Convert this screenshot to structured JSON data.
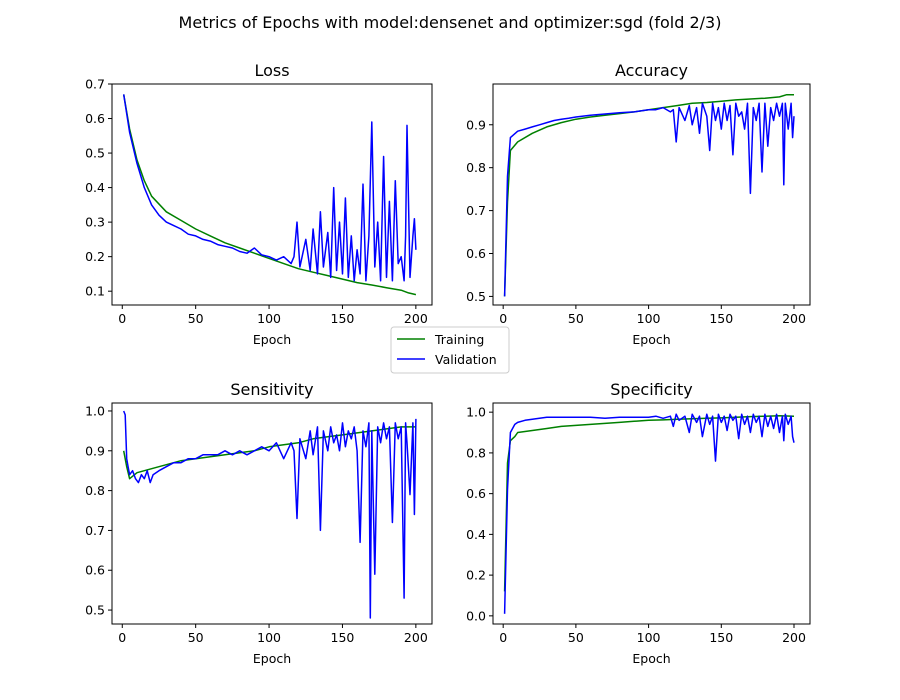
{
  "figure": {
    "title": "Metrics of Epochs with model:densenet and optimizer:sgd (fold 2/3)",
    "background": "#ffffff"
  },
  "legend": {
    "placement": "center",
    "entries": [
      {
        "label": "Training",
        "color": "#008000"
      },
      {
        "label": "Validation",
        "color": "#0000ff"
      }
    ]
  },
  "chart_data": [
    {
      "type": "line",
      "title": "Loss",
      "xlabel": "Epoch",
      "ylabel": "",
      "xlim": [
        -7,
        211
      ],
      "ylim": [
        0.06,
        0.7
      ],
      "xticks": [
        0,
        50,
        100,
        150,
        200
      ],
      "yticks": [
        0.1,
        0.2,
        0.3,
        0.4,
        0.5,
        0.6,
        0.7
      ],
      "grid": false,
      "series": [
        {
          "name": "Training",
          "color": "#008000",
          "x": [
            1,
            5,
            10,
            15,
            20,
            30,
            40,
            50,
            60,
            70,
            80,
            90,
            100,
            110,
            120,
            130,
            140,
            150,
            160,
            170,
            180,
            190,
            195,
            200
          ],
          "y": [
            0.67,
            0.57,
            0.48,
            0.42,
            0.375,
            0.33,
            0.305,
            0.28,
            0.26,
            0.24,
            0.225,
            0.21,
            0.195,
            0.18,
            0.165,
            0.155,
            0.145,
            0.135,
            0.125,
            0.118,
            0.11,
            0.103,
            0.095,
            0.09
          ]
        },
        {
          "name": "Validation",
          "color": "#0000ff",
          "x": [
            1,
            5,
            10,
            15,
            20,
            25,
            30,
            35,
            40,
            45,
            50,
            55,
            60,
            65,
            70,
            75,
            80,
            85,
            90,
            95,
            100,
            105,
            110,
            115,
            117,
            119,
            121,
            125,
            128,
            130,
            133,
            135,
            137,
            140,
            142,
            144,
            146,
            148,
            150,
            152,
            154,
            156,
            158,
            160,
            162,
            164,
            166,
            168,
            170,
            172,
            174,
            176,
            178,
            180,
            182,
            184,
            186,
            188,
            190,
            192,
            193,
            194,
            196,
            198,
            199,
            200
          ],
          "y": [
            0.67,
            0.56,
            0.47,
            0.4,
            0.35,
            0.32,
            0.3,
            0.29,
            0.28,
            0.265,
            0.26,
            0.25,
            0.245,
            0.235,
            0.23,
            0.225,
            0.215,
            0.21,
            0.225,
            0.205,
            0.2,
            0.19,
            0.2,
            0.18,
            0.2,
            0.3,
            0.17,
            0.25,
            0.16,
            0.28,
            0.15,
            0.33,
            0.17,
            0.27,
            0.14,
            0.4,
            0.16,
            0.3,
            0.15,
            0.37,
            0.14,
            0.26,
            0.13,
            0.22,
            0.15,
            0.41,
            0.13,
            0.26,
            0.59,
            0.17,
            0.3,
            0.13,
            0.49,
            0.14,
            0.36,
            0.13,
            0.42,
            0.18,
            0.2,
            0.13,
            0.26,
            0.58,
            0.14,
            0.26,
            0.31,
            0.22
          ]
        }
      ]
    },
    {
      "type": "line",
      "title": "Accuracy",
      "xlabel": "Epoch",
      "ylabel": "",
      "xlim": [
        -7,
        211
      ],
      "ylim": [
        0.48,
        0.995
      ],
      "xticks": [
        0,
        50,
        100,
        150,
        200
      ],
      "yticks": [
        0.5,
        0.6,
        0.7,
        0.8,
        0.9
      ],
      "grid": false,
      "series": [
        {
          "name": "Training",
          "color": "#008000",
          "x": [
            1,
            3,
            5,
            10,
            20,
            30,
            40,
            50,
            60,
            70,
            80,
            90,
            100,
            110,
            120,
            130,
            140,
            150,
            160,
            170,
            180,
            190,
            195,
            200
          ],
          "y": [
            0.5,
            0.72,
            0.84,
            0.86,
            0.88,
            0.895,
            0.905,
            0.913,
            0.918,
            0.922,
            0.926,
            0.93,
            0.935,
            0.94,
            0.945,
            0.95,
            0.952,
            0.955,
            0.958,
            0.96,
            0.962,
            0.965,
            0.97,
            0.97
          ]
        },
        {
          "name": "Validation",
          "color": "#0000ff",
          "x": [
            1,
            3,
            5,
            10,
            15,
            20,
            25,
            30,
            35,
            40,
            45,
            50,
            60,
            70,
            80,
            90,
            100,
            105,
            110,
            115,
            117,
            119,
            121,
            125,
            128,
            130,
            133,
            135,
            137,
            140,
            142,
            144,
            146,
            148,
            150,
            152,
            154,
            156,
            158,
            160,
            162,
            164,
            166,
            168,
            170,
            172,
            174,
            176,
            178,
            180,
            182,
            184,
            186,
            188,
            190,
            192,
            193,
            194,
            196,
            198,
            199,
            200
          ],
          "y": [
            0.5,
            0.78,
            0.87,
            0.885,
            0.89,
            0.895,
            0.9,
            0.905,
            0.91,
            0.913,
            0.915,
            0.918,
            0.922,
            0.925,
            0.928,
            0.93,
            0.935,
            0.935,
            0.94,
            0.93,
            0.935,
            0.86,
            0.94,
            0.91,
            0.945,
            0.9,
            0.94,
            0.88,
            0.95,
            0.92,
            0.84,
            0.95,
            0.91,
            0.94,
            0.89,
            0.95,
            0.91,
            0.945,
            0.83,
            0.95,
            0.92,
            0.93,
            0.89,
            0.95,
            0.74,
            0.94,
            0.91,
            0.95,
            0.79,
            0.95,
            0.85,
            0.94,
            0.91,
            0.95,
            0.92,
            0.95,
            0.76,
            0.95,
            0.89,
            0.95,
            0.87,
            0.92
          ]
        }
      ]
    },
    {
      "type": "line",
      "title": "Sensitivity",
      "xlabel": "Epoch",
      "ylabel": "",
      "xlim": [
        -7,
        211
      ],
      "ylim": [
        0.465,
        1.02
      ],
      "xticks": [
        0,
        50,
        100,
        150,
        200
      ],
      "yticks": [
        0.5,
        0.6,
        0.7,
        0.8,
        0.9,
        1.0
      ],
      "grid": false,
      "series": [
        {
          "name": "Training",
          "color": "#008000",
          "x": [
            1,
            3,
            5,
            10,
            15,
            20,
            30,
            40,
            50,
            60,
            70,
            80,
            90,
            100,
            110,
            120,
            130,
            140,
            150,
            160,
            170,
            180,
            190,
            200
          ],
          "y": [
            0.9,
            0.86,
            0.83,
            0.845,
            0.85,
            0.855,
            0.865,
            0.875,
            0.88,
            0.885,
            0.89,
            0.895,
            0.9,
            0.91,
            0.915,
            0.92,
            0.93,
            0.935,
            0.94,
            0.945,
            0.95,
            0.955,
            0.96,
            0.96
          ]
        },
        {
          "name": "Validation",
          "color": "#0000ff",
          "x": [
            1,
            2,
            3,
            4,
            5,
            7,
            9,
            11,
            13,
            15,
            17,
            19,
            21,
            25,
            30,
            35,
            40,
            45,
            50,
            55,
            60,
            65,
            70,
            75,
            80,
            85,
            90,
            95,
            100,
            105,
            110,
            115,
            117,
            119,
            121,
            125,
            128,
            130,
            133,
            135,
            137,
            140,
            142,
            144,
            146,
            148,
            150,
            152,
            154,
            156,
            158,
            160,
            162,
            164,
            166,
            168,
            169,
            170,
            172,
            174,
            176,
            178,
            180,
            182,
            184,
            186,
            188,
            190,
            192,
            193,
            194,
            196,
            198,
            199,
            200
          ],
          "y": [
            1.0,
            0.99,
            0.88,
            0.86,
            0.84,
            0.85,
            0.83,
            0.82,
            0.84,
            0.83,
            0.85,
            0.82,
            0.84,
            0.85,
            0.86,
            0.87,
            0.87,
            0.88,
            0.88,
            0.89,
            0.89,
            0.89,
            0.9,
            0.89,
            0.9,
            0.89,
            0.9,
            0.91,
            0.9,
            0.92,
            0.88,
            0.92,
            0.9,
            0.73,
            0.93,
            0.88,
            0.95,
            0.89,
            0.96,
            0.7,
            0.95,
            0.9,
            0.96,
            0.92,
            0.94,
            0.9,
            0.97,
            0.91,
            0.95,
            0.93,
            0.96,
            0.9,
            0.67,
            0.95,
            0.91,
            0.97,
            0.48,
            0.95,
            0.59,
            0.96,
            0.92,
            0.97,
            0.93,
            0.96,
            0.72,
            0.97,
            0.93,
            0.96,
            0.53,
            0.97,
            0.92,
            0.79,
            0.97,
            0.74,
            0.98
          ]
        }
      ]
    },
    {
      "type": "line",
      "title": "Specificity",
      "xlabel": "Epoch",
      "ylabel": "",
      "xlim": [
        -7,
        211
      ],
      "ylim": [
        -0.04,
        1.045
      ],
      "xticks": [
        0,
        50,
        100,
        150,
        200
      ],
      "yticks": [
        0.0,
        0.2,
        0.4,
        0.6,
        0.8,
        1.0
      ],
      "grid": false,
      "series": [
        {
          "name": "Training",
          "color": "#008000",
          "x": [
            1,
            3,
            5,
            8,
            10,
            15,
            20,
            30,
            40,
            50,
            60,
            70,
            80,
            90,
            100,
            110,
            120,
            130,
            140,
            150,
            160,
            170,
            180,
            190,
            200
          ],
          "y": [
            0.12,
            0.75,
            0.86,
            0.88,
            0.9,
            0.905,
            0.91,
            0.92,
            0.93,
            0.935,
            0.94,
            0.945,
            0.95,
            0.955,
            0.96,
            0.962,
            0.965,
            0.968,
            0.97,
            0.972,
            0.975,
            0.978,
            0.98,
            0.982,
            0.98
          ]
        },
        {
          "name": "Validation",
          "color": "#0000ff",
          "x": [
            1,
            3,
            5,
            8,
            10,
            15,
            20,
            25,
            30,
            40,
            50,
            60,
            70,
            80,
            90,
            100,
            105,
            110,
            115,
            117,
            119,
            121,
            125,
            128,
            130,
            133,
            135,
            137,
            140,
            142,
            144,
            146,
            148,
            150,
            152,
            154,
            156,
            158,
            160,
            162,
            164,
            166,
            168,
            170,
            172,
            174,
            176,
            178,
            180,
            182,
            184,
            186,
            188,
            190,
            192,
            193,
            194,
            196,
            198,
            199,
            200
          ],
          "y": [
            0.01,
            0.62,
            0.9,
            0.94,
            0.95,
            0.96,
            0.965,
            0.97,
            0.975,
            0.975,
            0.975,
            0.975,
            0.97,
            0.975,
            0.975,
            0.975,
            0.98,
            0.97,
            0.98,
            0.93,
            0.99,
            0.96,
            0.98,
            0.9,
            0.99,
            0.95,
            0.98,
            0.88,
            0.99,
            0.94,
            0.98,
            0.76,
            0.99,
            0.95,
            0.98,
            0.91,
            0.99,
            0.96,
            0.98,
            0.87,
            0.99,
            0.94,
            0.98,
            0.9,
            0.99,
            0.95,
            0.98,
            0.88,
            0.99,
            0.93,
            0.98,
            0.92,
            0.99,
            0.9,
            0.98,
            0.86,
            0.99,
            0.94,
            0.98,
            0.88,
            0.85
          ]
        }
      ]
    }
  ]
}
